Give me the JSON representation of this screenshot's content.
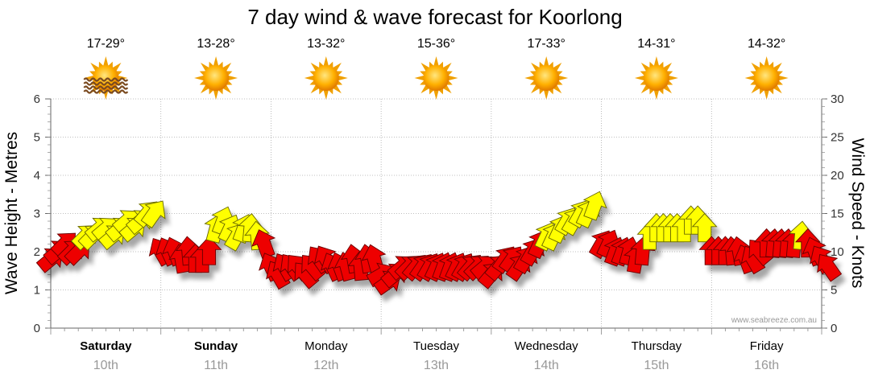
{
  "chart_data": {
    "type": "line",
    "title": "7 day wind & wave forecast for Koorlong",
    "ylabel_left": "Wave Height - Metres",
    "ylabel_right": "Wind Speed - Knots",
    "ylim_left": [
      0,
      6
    ],
    "ylim_right": [
      0,
      30
    ],
    "yticks_left": [
      "0",
      "1",
      "2",
      "3",
      "4",
      "5",
      "6"
    ],
    "yticks_right": [
      "0",
      "5",
      "10",
      "15",
      "20",
      "25",
      "30"
    ],
    "days": [
      {
        "day": "Saturday",
        "date": "10th",
        "temp": "17-29°",
        "weather": "sun-haze",
        "bold": true
      },
      {
        "day": "Sunday",
        "date": "11th",
        "temp": "13-28°",
        "weather": "sun",
        "bold": true
      },
      {
        "day": "Monday",
        "date": "12th",
        "temp": "13-32°",
        "weather": "sun",
        "bold": false
      },
      {
        "day": "Tuesday",
        "date": "13th",
        "temp": "15-36°",
        "weather": "sun",
        "bold": false
      },
      {
        "day": "Wednesday",
        "date": "14th",
        "temp": "17-33°",
        "weather": "sun",
        "bold": false
      },
      {
        "day": "Thursday",
        "date": "15th",
        "temp": "14-31°",
        "weather": "sun",
        "bold": false
      },
      {
        "day": "Friday",
        "date": "16th",
        "temp": "14-32°",
        "weather": "sun",
        "bold": false
      }
    ],
    "wind_series": {
      "name": "Wind Speed (knots)",
      "start_day": 0.0,
      "step_days": 0.0625,
      "yellow_threshold_knots": 12,
      "speeds": [
        9,
        10,
        11,
        10,
        10,
        12,
        12,
        13,
        13,
        12,
        13,
        14,
        13,
        14,
        15,
        15,
        10,
        10,
        10,
        9,
        10,
        9,
        9,
        10,
        13,
        14,
        13,
        12,
        13,
        13,
        12,
        11,
        8,
        7,
        8,
        8,
        8,
        7,
        8,
        9,
        9,
        8,
        8,
        8,
        9,
        8,
        9,
        9,
        7,
        6,
        7,
        8,
        8,
        8,
        8,
        8,
        8,
        8,
        8,
        8,
        8,
        8,
        8,
        8,
        7,
        8,
        9,
        9,
        8,
        9,
        10,
        11,
        12,
        12,
        13,
        14,
        14,
        15,
        15,
        16,
        11,
        11,
        10,
        10,
        10,
        9,
        10,
        12,
        13,
        13,
        13,
        13,
        13,
        14,
        14,
        13,
        10,
        10,
        10,
        10,
        10,
        9,
        9,
        10,
        11,
        11,
        11,
        11,
        11,
        12,
        11,
        10,
        9,
        8
      ],
      "directions_deg": [
        230,
        230,
        225,
        225,
        225,
        225,
        225,
        230,
        230,
        230,
        230,
        230,
        230,
        230,
        220,
        215,
        150,
        155,
        160,
        170,
        175,
        180,
        180,
        180,
        195,
        200,
        205,
        210,
        200,
        185,
        175,
        160,
        155,
        150,
        150,
        145,
        140,
        140,
        140,
        145,
        150,
        155,
        160,
        165,
        170,
        175,
        170,
        165,
        240,
        235,
        230,
        230,
        225,
        220,
        215,
        210,
        205,
        200,
        200,
        205,
        210,
        220,
        225,
        230,
        220,
        220,
        215,
        215,
        215,
        210,
        210,
        205,
        205,
        205,
        205,
        210,
        210,
        210,
        205,
        200,
        210,
        205,
        200,
        200,
        195,
        190,
        185,
        180,
        180,
        180,
        180,
        180,
        180,
        180,
        180,
        180,
        180,
        180,
        180,
        175,
        170,
        160,
        150,
        140,
        180,
        185,
        185,
        185,
        185,
        185,
        180,
        160,
        150,
        145
      ]
    },
    "legend": "none",
    "credit": "www.seabreeze.com.au"
  }
}
